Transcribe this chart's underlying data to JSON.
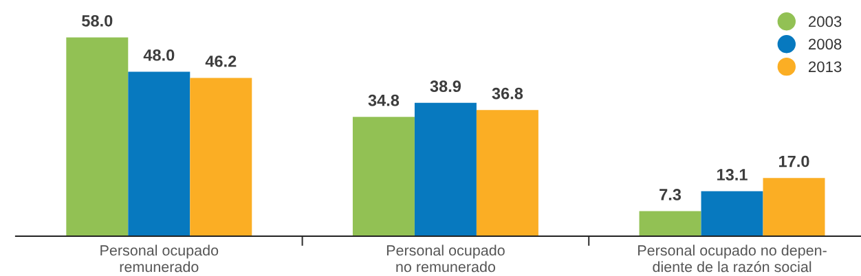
{
  "chart_data": {
    "type": "bar",
    "categories": [
      "Personal ocupado\nremunerado",
      "Personal ocupado\nno remunerado",
      "Personal ocupado no depen-\ndiente de la razón social"
    ],
    "series": [
      {
        "name": "2003",
        "color": "#92c154",
        "values": [
          58.0,
          34.8,
          7.3
        ],
        "value_labels": [
          "58.0",
          "34.8",
          "7.3"
        ]
      },
      {
        "name": "2008",
        "color": "#0779bf",
        "values": [
          48.0,
          38.9,
          13.1
        ],
        "value_labels": [
          "48.0",
          "38.9",
          "13.1"
        ]
      },
      {
        "name": "2013",
        "color": "#fbae24",
        "values": [
          46.2,
          36.8,
          17.0
        ],
        "value_labels": [
          "46.2",
          "36.8",
          "17.0"
        ]
      }
    ],
    "legend": "top right",
    "tick_labels": "x",
    "marker": "circle"
  }
}
